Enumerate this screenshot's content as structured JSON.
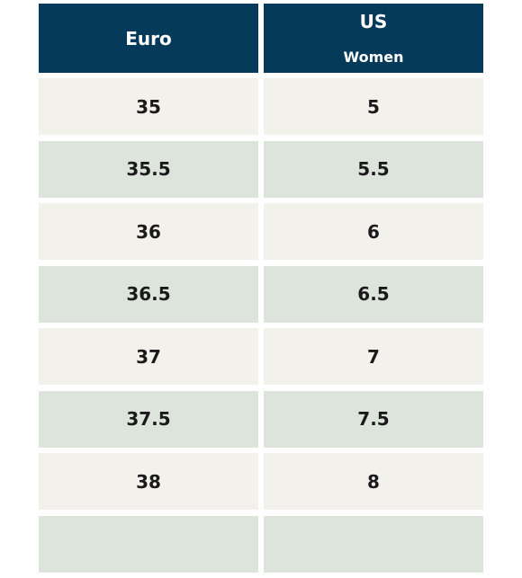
{
  "header": {
    "euro_label": "Euro",
    "us_label": "US",
    "us_sublabel": "Women"
  },
  "rows": [
    {
      "euro": "35",
      "us": "5"
    },
    {
      "euro": "35.5",
      "us": "5.5"
    },
    {
      "euro": "36",
      "us": "6"
    },
    {
      "euro": "36.5",
      "us": "6.5"
    },
    {
      "euro": "37",
      "us": "7"
    },
    {
      "euro": "37.5",
      "us": "7.5"
    },
    {
      "euro": "38",
      "us": "8"
    },
    {
      "euro": "",
      "us": ""
    }
  ],
  "colors": {
    "header_bg": "#053a5a",
    "row_light": "#f3f1ec",
    "row_green": "#dde4dc",
    "text": "#1a1a1a"
  }
}
